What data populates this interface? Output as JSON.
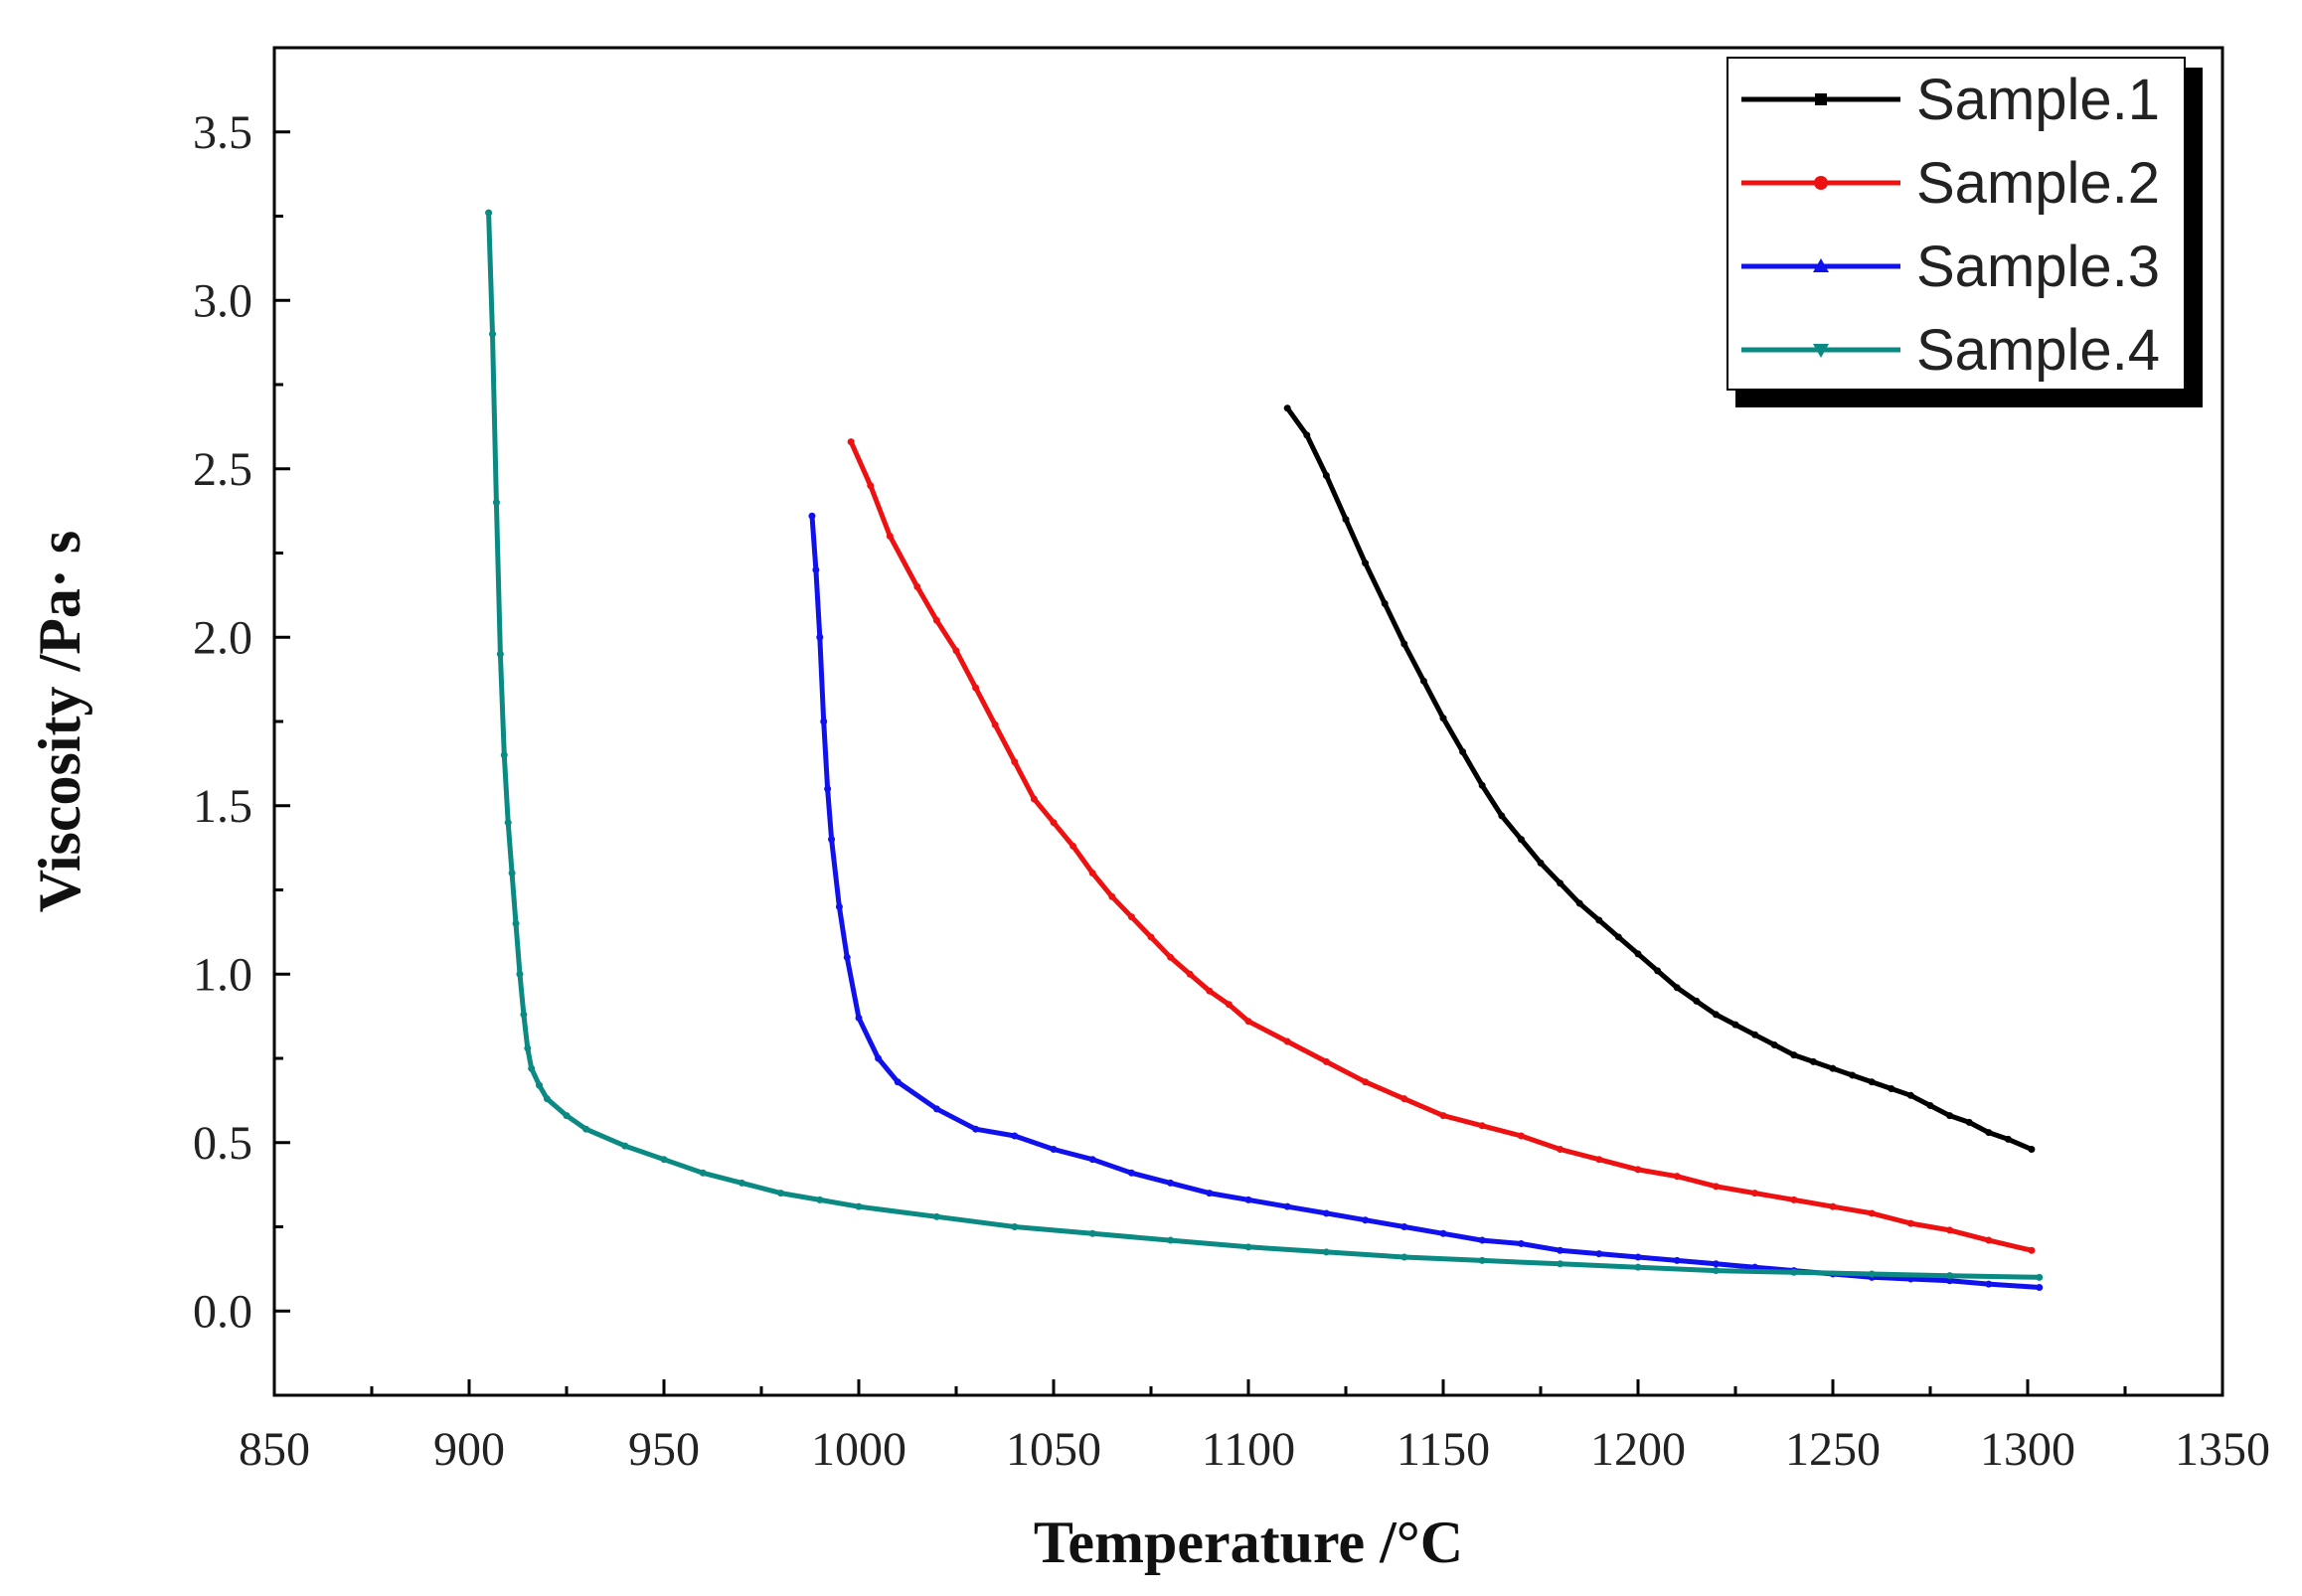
{
  "chart_data": {
    "type": "line",
    "xlabel": "Temperature /°C",
    "ylabel": "Viscosity /Pa· s",
    "xlim": [
      850,
      1350
    ],
    "ylim": [
      -0.25,
      3.75
    ],
    "x_ticks": [
      850,
      900,
      950,
      1000,
      1050,
      1100,
      1150,
      1200,
      1250,
      1300,
      1350
    ],
    "y_ticks": [
      0.0,
      0.5,
      1.0,
      1.5,
      2.0,
      2.5,
      3.0,
      3.5
    ],
    "x_tick_labels": [
      "850",
      "900",
      "950",
      "1000",
      "1050",
      "1100",
      "1150",
      "1200",
      "1250",
      "1300",
      "1350"
    ],
    "y_tick_labels": [
      "0.0",
      "0.5",
      "1.0",
      "1.5",
      "2.0",
      "2.5",
      "3.0",
      "3.5"
    ],
    "grid": false,
    "legend_position": "top-right",
    "series": [
      {
        "name": "Sample.1",
        "color": "#000000",
        "x": [
          1110,
          1115,
          1120,
          1125,
          1130,
          1135,
          1140,
          1145,
          1150,
          1155,
          1160,
          1165,
          1170,
          1175,
          1180,
          1185,
          1190,
          1195,
          1200,
          1205,
          1210,
          1215,
          1220,
          1225,
          1230,
          1235,
          1240,
          1245,
          1250,
          1255,
          1260,
          1265,
          1270,
          1275,
          1280,
          1285,
          1290,
          1295,
          1301
        ],
        "y": [
          2.68,
          2.6,
          2.48,
          2.35,
          2.22,
          2.1,
          1.98,
          1.87,
          1.76,
          1.66,
          1.56,
          1.47,
          1.4,
          1.33,
          1.27,
          1.21,
          1.16,
          1.11,
          1.06,
          1.01,
          0.96,
          0.92,
          0.88,
          0.85,
          0.82,
          0.79,
          0.76,
          0.74,
          0.72,
          0.7,
          0.68,
          0.66,
          0.64,
          0.61,
          0.58,
          0.56,
          0.53,
          0.51,
          0.48
        ]
      },
      {
        "name": "Sample.2",
        "color": "#ee1111",
        "x": [
          998,
          1003,
          1008,
          1015,
          1020,
          1025,
          1030,
          1035,
          1040,
          1045,
          1050,
          1055,
          1060,
          1065,
          1070,
          1075,
          1080,
          1085,
          1090,
          1095,
          1100,
          1110,
          1120,
          1130,
          1140,
          1150,
          1160,
          1170,
          1180,
          1190,
          1200,
          1210,
          1220,
          1230,
          1240,
          1250,
          1260,
          1270,
          1280,
          1290,
          1301
        ],
        "y": [
          2.58,
          2.45,
          2.3,
          2.15,
          2.05,
          1.96,
          1.85,
          1.74,
          1.63,
          1.52,
          1.45,
          1.38,
          1.3,
          1.23,
          1.17,
          1.11,
          1.05,
          1.0,
          0.95,
          0.91,
          0.86,
          0.8,
          0.74,
          0.68,
          0.63,
          0.58,
          0.55,
          0.52,
          0.48,
          0.45,
          0.42,
          0.4,
          0.37,
          0.35,
          0.33,
          0.31,
          0.29,
          0.26,
          0.24,
          0.21,
          0.18
        ]
      },
      {
        "name": "Sample.3",
        "color": "#1111ee",
        "x": [
          988,
          989,
          990,
          991,
          992,
          993,
          995,
          997,
          1000,
          1005,
          1010,
          1020,
          1030,
          1040,
          1050,
          1060,
          1070,
          1080,
          1090,
          1100,
          1110,
          1120,
          1130,
          1140,
          1150,
          1160,
          1170,
          1180,
          1190,
          1200,
          1210,
          1220,
          1230,
          1240,
          1250,
          1260,
          1270,
          1280,
          1290,
          1303
        ],
        "y": [
          2.36,
          2.2,
          2.0,
          1.75,
          1.55,
          1.4,
          1.2,
          1.05,
          0.87,
          0.75,
          0.68,
          0.6,
          0.54,
          0.52,
          0.48,
          0.45,
          0.41,
          0.38,
          0.35,
          0.33,
          0.31,
          0.29,
          0.27,
          0.25,
          0.23,
          0.21,
          0.2,
          0.18,
          0.17,
          0.16,
          0.15,
          0.14,
          0.13,
          0.12,
          0.11,
          0.1,
          0.095,
          0.09,
          0.08,
          0.07
        ]
      },
      {
        "name": "Sample.4",
        "color": "#0a8a82",
        "x": [
          905,
          906,
          907,
          908,
          909,
          910,
          911,
          912,
          913,
          914,
          915,
          916,
          918,
          920,
          925,
          930,
          940,
          950,
          960,
          970,
          980,
          990,
          1000,
          1020,
          1040,
          1060,
          1080,
          1100,
          1120,
          1140,
          1160,
          1180,
          1200,
          1220,
          1240,
          1260,
          1280,
          1303
        ],
        "y": [
          3.26,
          2.9,
          2.4,
          1.95,
          1.65,
          1.45,
          1.3,
          1.15,
          1.0,
          0.88,
          0.78,
          0.72,
          0.67,
          0.63,
          0.58,
          0.54,
          0.49,
          0.45,
          0.41,
          0.38,
          0.35,
          0.33,
          0.31,
          0.28,
          0.25,
          0.23,
          0.21,
          0.19,
          0.175,
          0.16,
          0.15,
          0.14,
          0.13,
          0.12,
          0.115,
          0.11,
          0.105,
          0.1
        ]
      }
    ]
  }
}
